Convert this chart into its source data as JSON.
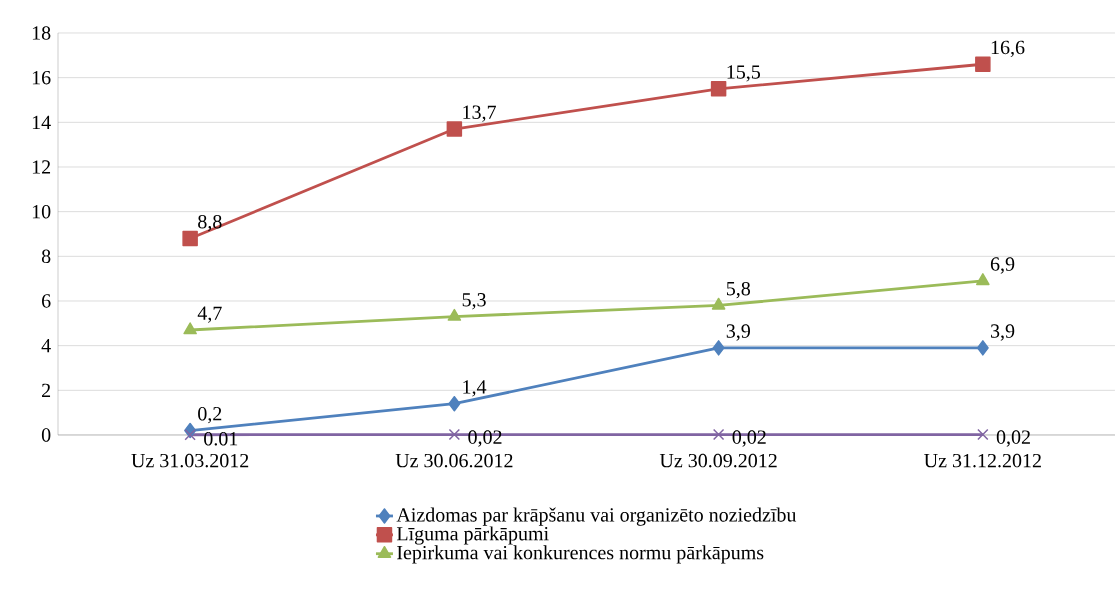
{
  "chart_data": {
    "type": "line",
    "categories": [
      "Uz 31.03.2012",
      "Uz 30.06.2012",
      "Uz 30.09.2012",
      "Uz 31.12.2012"
    ],
    "series": [
      {
        "name": "Aizdomas par krāpšanu vai organizēto noziedzību",
        "color": "#4f81bd",
        "marker": "diamond",
        "values": [
          0.2,
          1.4,
          3.9,
          3.9
        ],
        "value_labels": [
          "0,2",
          "1,4",
          "3,9",
          "3,9"
        ]
      },
      {
        "name": "Līguma pārkāpumi",
        "color": "#c0504d",
        "marker": "square",
        "values": [
          8.8,
          13.7,
          15.5,
          16.6
        ],
        "value_labels": [
          "8,8",
          "13,7",
          "15,5",
          "16,6"
        ]
      },
      {
        "name": "Iepirkuma vai konkurences normu pārkāpums",
        "color": "#9bbb59",
        "marker": "triangle",
        "values": [
          4.7,
          5.3,
          5.8,
          6.9
        ],
        "value_labels": [
          "4,7",
          "5,3",
          "5,8",
          "6,9"
        ]
      },
      {
        "color": "#8064a2",
        "marker": "cross",
        "values": [
          0.01,
          0.02,
          0.02,
          0.02
        ],
        "value_labels": [
          "0.01",
          "0,02",
          "0,02",
          "0,02"
        ]
      }
    ],
    "ylim": [
      0,
      18
    ],
    "yticks": [
      0,
      2,
      4,
      6,
      8,
      10,
      12,
      14,
      16,
      18
    ],
    "grid": "y",
    "legend": "bottom",
    "line_style": "solid"
  }
}
